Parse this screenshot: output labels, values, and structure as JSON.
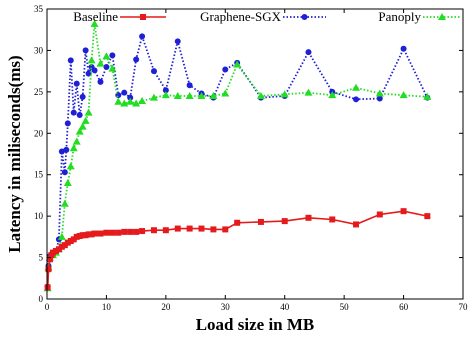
{
  "chart_data": {
    "type": "line",
    "title": "",
    "xlabel": "Load size in MB",
    "ylabel": "Latency in miliseconds(ms)",
    "xlim": [
      0,
      70
    ],
    "ylim": [
      0,
      35
    ],
    "xticks": [
      "0",
      "10",
      "20",
      "30",
      "40",
      "50",
      "60",
      "70"
    ],
    "yticks": [
      "0",
      "5",
      "10",
      "15",
      "20",
      "25",
      "30",
      "35"
    ],
    "grid": false,
    "legend_position": "top",
    "series": [
      {
        "name": "Baseline",
        "color": "#e41a1c",
        "style": "solid",
        "marker": "square",
        "points": [
          [
            0.1,
            1.4
          ],
          [
            0.25,
            3.6
          ],
          [
            0.5,
            4.8
          ],
          [
            0.75,
            5.3
          ],
          [
            1,
            5.6
          ],
          [
            1.5,
            5.8
          ],
          [
            2,
            6.0
          ],
          [
            2.5,
            6.3
          ],
          [
            3,
            6.5
          ],
          [
            3.5,
            6.8
          ],
          [
            4,
            7.0
          ],
          [
            4.5,
            7.2
          ],
          [
            5,
            7.5
          ],
          [
            5.5,
            7.6
          ],
          [
            6,
            7.7
          ],
          [
            6.5,
            7.7
          ],
          [
            7,
            7.8
          ],
          [
            7.5,
            7.8
          ],
          [
            8,
            7.9
          ],
          [
            9,
            7.9
          ],
          [
            10,
            8.0
          ],
          [
            11,
            8.0
          ],
          [
            12,
            8.0
          ],
          [
            13,
            8.1
          ],
          [
            14,
            8.1
          ],
          [
            15,
            8.1
          ],
          [
            16,
            8.2
          ],
          [
            18,
            8.3
          ],
          [
            20,
            8.3
          ],
          [
            22,
            8.5
          ],
          [
            24,
            8.5
          ],
          [
            26,
            8.5
          ],
          [
            28,
            8.4
          ],
          [
            30,
            8.4
          ],
          [
            32,
            9.2
          ],
          [
            36,
            9.3
          ],
          [
            40,
            9.4
          ],
          [
            44,
            9.8
          ],
          [
            48,
            9.6
          ],
          [
            52,
            9.0
          ],
          [
            56,
            10.2
          ],
          [
            60,
            10.6
          ],
          [
            64,
            10.0
          ]
        ]
      },
      {
        "name": "Graphene-SGX",
        "color": "#1f1fd6",
        "style": "dotted",
        "marker": "circle",
        "points": [
          [
            0.1,
            1.5
          ],
          [
            0.25,
            4.0
          ],
          [
            0.5,
            5.2
          ],
          [
            1,
            5.5
          ],
          [
            1.5,
            5.7
          ],
          [
            2,
            7.2
          ],
          [
            2.5,
            17.8
          ],
          [
            3,
            15.3
          ],
          [
            3.25,
            18.0
          ],
          [
            3.5,
            21.2
          ],
          [
            4,
            28.8
          ],
          [
            4.5,
            22.5
          ],
          [
            5,
            26.0
          ],
          [
            5.5,
            22.2
          ],
          [
            6,
            24.4
          ],
          [
            6.5,
            30.0
          ],
          [
            7,
            27.2
          ],
          [
            7.5,
            28.0
          ],
          [
            8,
            27.6
          ],
          [
            9,
            26.2
          ],
          [
            10,
            28.0
          ],
          [
            11,
            29.4
          ],
          [
            12,
            24.6
          ],
          [
            13,
            24.9
          ],
          [
            14,
            24.3
          ],
          [
            15,
            28.9
          ],
          [
            16,
            31.7
          ],
          [
            18,
            27.5
          ],
          [
            20,
            25.2
          ],
          [
            22,
            31.1
          ],
          [
            24,
            25.8
          ],
          [
            26,
            24.8
          ],
          [
            28,
            24.3
          ],
          [
            30,
            27.7
          ],
          [
            32,
            28.5
          ],
          [
            36,
            24.3
          ],
          [
            40,
            24.5
          ],
          [
            44,
            29.8
          ],
          [
            48,
            25.0
          ],
          [
            52,
            24.1
          ],
          [
            56,
            24.2
          ],
          [
            60,
            30.2
          ],
          [
            64,
            24.3
          ]
        ]
      },
      {
        "name": "Panoply",
        "color": "#22dd22",
        "style": "dotted",
        "marker": "triangle",
        "points": [
          [
            0.1,
            1.3
          ],
          [
            0.25,
            3.8
          ],
          [
            0.5,
            5.0
          ],
          [
            1,
            5.3
          ],
          [
            1.5,
            5.6
          ],
          [
            2,
            6.0
          ],
          [
            2.5,
            7.5
          ],
          [
            3,
            11.5
          ],
          [
            3.5,
            14.0
          ],
          [
            4,
            16.0
          ],
          [
            4.5,
            18.2
          ],
          [
            5,
            19.0
          ],
          [
            5.5,
            20.2
          ],
          [
            6,
            20.8
          ],
          [
            6.5,
            21.5
          ],
          [
            7,
            22.5
          ],
          [
            7.5,
            28.8
          ],
          [
            8,
            33.2
          ],
          [
            9,
            28.4
          ],
          [
            10,
            29.3
          ],
          [
            11,
            27.8
          ],
          [
            12,
            23.8
          ],
          [
            13,
            23.6
          ],
          [
            14,
            23.8
          ],
          [
            15,
            23.6
          ],
          [
            16,
            23.9
          ],
          [
            18,
            24.3
          ],
          [
            20,
            24.6
          ],
          [
            22,
            24.5
          ],
          [
            24,
            24.5
          ],
          [
            26,
            24.5
          ],
          [
            28,
            24.5
          ],
          [
            30,
            24.8
          ],
          [
            32,
            28.3
          ],
          [
            36,
            24.5
          ],
          [
            40,
            24.7
          ],
          [
            44,
            24.9
          ],
          [
            48,
            24.6
          ],
          [
            52,
            25.5
          ],
          [
            56,
            24.8
          ],
          [
            60,
            24.6
          ],
          [
            64,
            24.4
          ]
        ]
      }
    ]
  }
}
